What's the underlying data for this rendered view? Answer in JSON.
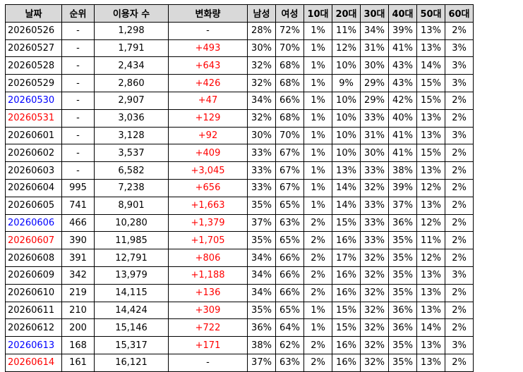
{
  "colors": {
    "header_bg": "#d9d9d9",
    "red": "#ff0000",
    "blue": "#0000ff",
    "black": "#000000",
    "border": "#000000"
  },
  "headers": [
    "날짜",
    "순위",
    "이용자 수",
    "변화량",
    "남성",
    "여성",
    "10대",
    "20대",
    "30대",
    "40대",
    "50대",
    "60대"
  ],
  "rows": [
    {
      "date": "20260526",
      "date_color": "black",
      "rank": "-",
      "users": "1,298",
      "change": "-",
      "change_color": "black",
      "male": "28%",
      "female": "72%",
      "a10": "1%",
      "a20": "11%",
      "a30": "34%",
      "a40": "39%",
      "a50": "13%",
      "a60": "2%"
    },
    {
      "date": "20260527",
      "date_color": "black",
      "rank": "-",
      "users": "1,791",
      "change": "+493",
      "change_color": "red",
      "male": "30%",
      "female": "70%",
      "a10": "1%",
      "a20": "12%",
      "a30": "31%",
      "a40": "41%",
      "a50": "13%",
      "a60": "3%"
    },
    {
      "date": "20260528",
      "date_color": "black",
      "rank": "-",
      "users": "2,434",
      "change": "+643",
      "change_color": "red",
      "male": "32%",
      "female": "68%",
      "a10": "1%",
      "a20": "10%",
      "a30": "30%",
      "a40": "43%",
      "a50": "14%",
      "a60": "3%"
    },
    {
      "date": "20260529",
      "date_color": "black",
      "rank": "-",
      "users": "2,860",
      "change": "+426",
      "change_color": "red",
      "male": "32%",
      "female": "68%",
      "a10": "1%",
      "a20": "9%",
      "a30": "29%",
      "a40": "43%",
      "a50": "15%",
      "a60": "3%"
    },
    {
      "date": "20260530",
      "date_color": "blue",
      "rank": "-",
      "users": "2,907",
      "change": "+47",
      "change_color": "red",
      "male": "34%",
      "female": "66%",
      "a10": "1%",
      "a20": "10%",
      "a30": "29%",
      "a40": "42%",
      "a50": "15%",
      "a60": "2%"
    },
    {
      "date": "20260531",
      "date_color": "red",
      "rank": "-",
      "users": "3,036",
      "change": "+129",
      "change_color": "red",
      "male": "32%",
      "female": "68%",
      "a10": "1%",
      "a20": "10%",
      "a30": "33%",
      "a40": "40%",
      "a50": "13%",
      "a60": "2%"
    },
    {
      "date": "20260601",
      "date_color": "black",
      "rank": "-",
      "users": "3,128",
      "change": "+92",
      "change_color": "red",
      "male": "30%",
      "female": "70%",
      "a10": "1%",
      "a20": "10%",
      "a30": "31%",
      "a40": "41%",
      "a50": "13%",
      "a60": "3%"
    },
    {
      "date": "20260602",
      "date_color": "black",
      "rank": "-",
      "users": "3,537",
      "change": "+409",
      "change_color": "red",
      "male": "33%",
      "female": "67%",
      "a10": "1%",
      "a20": "10%",
      "a30": "30%",
      "a40": "41%",
      "a50": "15%",
      "a60": "2%"
    },
    {
      "date": "20260603",
      "date_color": "black",
      "rank": "-",
      "users": "6,582",
      "change": "+3,045",
      "change_color": "red",
      "male": "33%",
      "female": "67%",
      "a10": "1%",
      "a20": "13%",
      "a30": "33%",
      "a40": "38%",
      "a50": "13%",
      "a60": "2%"
    },
    {
      "date": "20260604",
      "date_color": "black",
      "rank": "995",
      "users": "7,238",
      "change": "+656",
      "change_color": "red",
      "male": "33%",
      "female": "67%",
      "a10": "1%",
      "a20": "14%",
      "a30": "32%",
      "a40": "39%",
      "a50": "12%",
      "a60": "2%"
    },
    {
      "date": "20260605",
      "date_color": "black",
      "rank": "741",
      "users": "8,901",
      "change": "+1,663",
      "change_color": "red",
      "male": "35%",
      "female": "65%",
      "a10": "1%",
      "a20": "14%",
      "a30": "33%",
      "a40": "37%",
      "a50": "13%",
      "a60": "2%"
    },
    {
      "date": "20260606",
      "date_color": "blue",
      "rank": "466",
      "users": "10,280",
      "change": "+1,379",
      "change_color": "red",
      "male": "37%",
      "female": "63%",
      "a10": "2%",
      "a20": "15%",
      "a30": "33%",
      "a40": "36%",
      "a50": "12%",
      "a60": "2%"
    },
    {
      "date": "20260607",
      "date_color": "red",
      "rank": "390",
      "users": "11,985",
      "change": "+1,705",
      "change_color": "red",
      "male": "35%",
      "female": "65%",
      "a10": "2%",
      "a20": "16%",
      "a30": "33%",
      "a40": "35%",
      "a50": "11%",
      "a60": "2%"
    },
    {
      "date": "20260608",
      "date_color": "black",
      "rank": "391",
      "users": "12,791",
      "change": "+806",
      "change_color": "red",
      "male": "34%",
      "female": "66%",
      "a10": "2%",
      "a20": "17%",
      "a30": "32%",
      "a40": "35%",
      "a50": "12%",
      "a60": "2%"
    },
    {
      "date": "20260609",
      "date_color": "black",
      "rank": "342",
      "users": "13,979",
      "change": "+1,188",
      "change_color": "red",
      "male": "34%",
      "female": "66%",
      "a10": "2%",
      "a20": "16%",
      "a30": "32%",
      "a40": "35%",
      "a50": "13%",
      "a60": "3%"
    },
    {
      "date": "20260610",
      "date_color": "black",
      "rank": "219",
      "users": "14,115",
      "change": "+136",
      "change_color": "red",
      "male": "34%",
      "female": "66%",
      "a10": "2%",
      "a20": "16%",
      "a30": "32%",
      "a40": "35%",
      "a50": "13%",
      "a60": "2%"
    },
    {
      "date": "20260611",
      "date_color": "black",
      "rank": "210",
      "users": "14,424",
      "change": "+309",
      "change_color": "red",
      "male": "35%",
      "female": "65%",
      "a10": "1%",
      "a20": "15%",
      "a30": "32%",
      "a40": "36%",
      "a50": "13%",
      "a60": "2%"
    },
    {
      "date": "20260612",
      "date_color": "black",
      "rank": "200",
      "users": "15,146",
      "change": "+722",
      "change_color": "red",
      "male": "36%",
      "female": "64%",
      "a10": "1%",
      "a20": "15%",
      "a30": "32%",
      "a40": "36%",
      "a50": "14%",
      "a60": "2%"
    },
    {
      "date": "20260613",
      "date_color": "blue",
      "rank": "168",
      "users": "15,317",
      "change": "+171",
      "change_color": "red",
      "male": "38%",
      "female": "62%",
      "a10": "2%",
      "a20": "16%",
      "a30": "32%",
      "a40": "35%",
      "a50": "13%",
      "a60": "3%"
    },
    {
      "date": "20260614",
      "date_color": "red",
      "rank": "161",
      "users": "16,121",
      "change": "-",
      "change_color": "black",
      "male": "37%",
      "female": "63%",
      "a10": "2%",
      "a20": "16%",
      "a30": "32%",
      "a40": "35%",
      "a50": "13%",
      "a60": "2%"
    }
  ]
}
